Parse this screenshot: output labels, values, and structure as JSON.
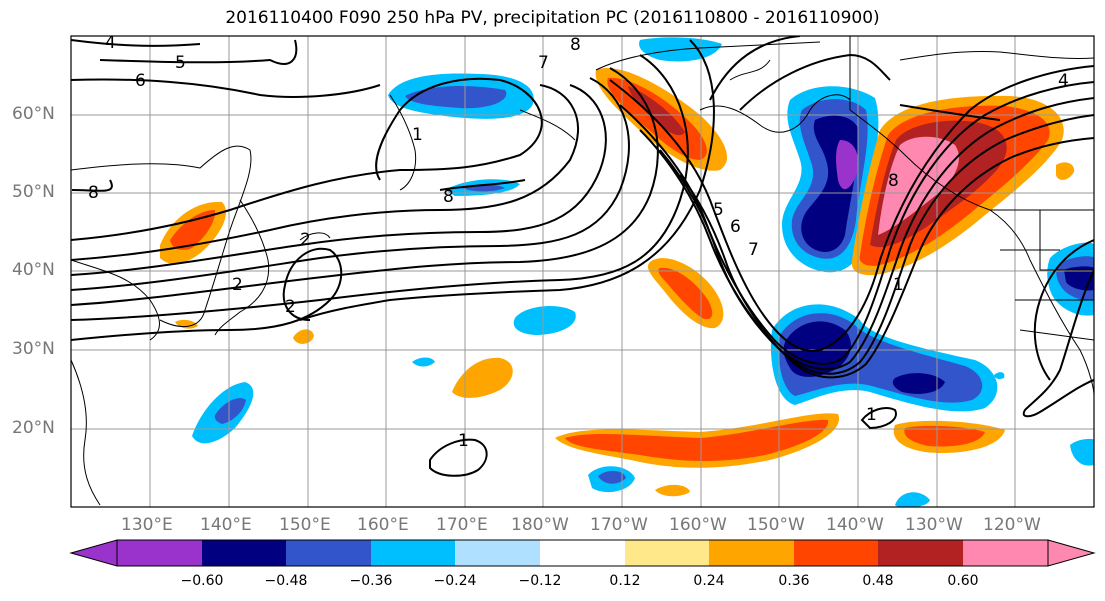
{
  "title": "2016110400 F090 250 hPa PV, precipitation PC (2016110800 - 2016110900)",
  "lat_labels": [
    "60°N",
    "50°N",
    "40°N",
    "30°N",
    "20°N"
  ],
  "lon_labels": [
    "130°E",
    "140°E",
    "150°E",
    "160°E",
    "170°E",
    "180°W",
    "170°W",
    "160°W",
    "150°W",
    "140°W",
    "130°W",
    "120°W"
  ],
  "colorbar": {
    "tick_labels": [
      "−0.60",
      "−0.48",
      "−0.36",
      "−0.24",
      "−0.12",
      "0.12",
      "0.24",
      "0.36",
      "0.48",
      "0.60"
    ],
    "colors": [
      "#9933cc",
      "#000080",
      "#3355cc",
      "#00bfff",
      "#b0e0ff",
      "#ffffff",
      "#ffe88a",
      "#ffa500",
      "#ff4500",
      "#b22222",
      "#ff88b0"
    ]
  },
  "contour_labels": [
    "4",
    "5",
    "6",
    "8",
    "7",
    "8",
    "4",
    "1",
    "8",
    "2",
    "2",
    "5",
    "6",
    "7",
    "8",
    "1",
    "1",
    "1",
    "2"
  ],
  "legend_colors": {
    "pos_light": "#ffe88a",
    "pos_orange": "#ffa500",
    "pos_red": "#ff4500",
    "pos_dark": "#b22222",
    "pos_pink": "#ff88b0",
    "neg_light": "#b0e0ff",
    "neg_cyan": "#00bfff",
    "neg_blue": "#3355cc",
    "neg_navy": "#000080",
    "neg_purple": "#9933cc"
  }
}
